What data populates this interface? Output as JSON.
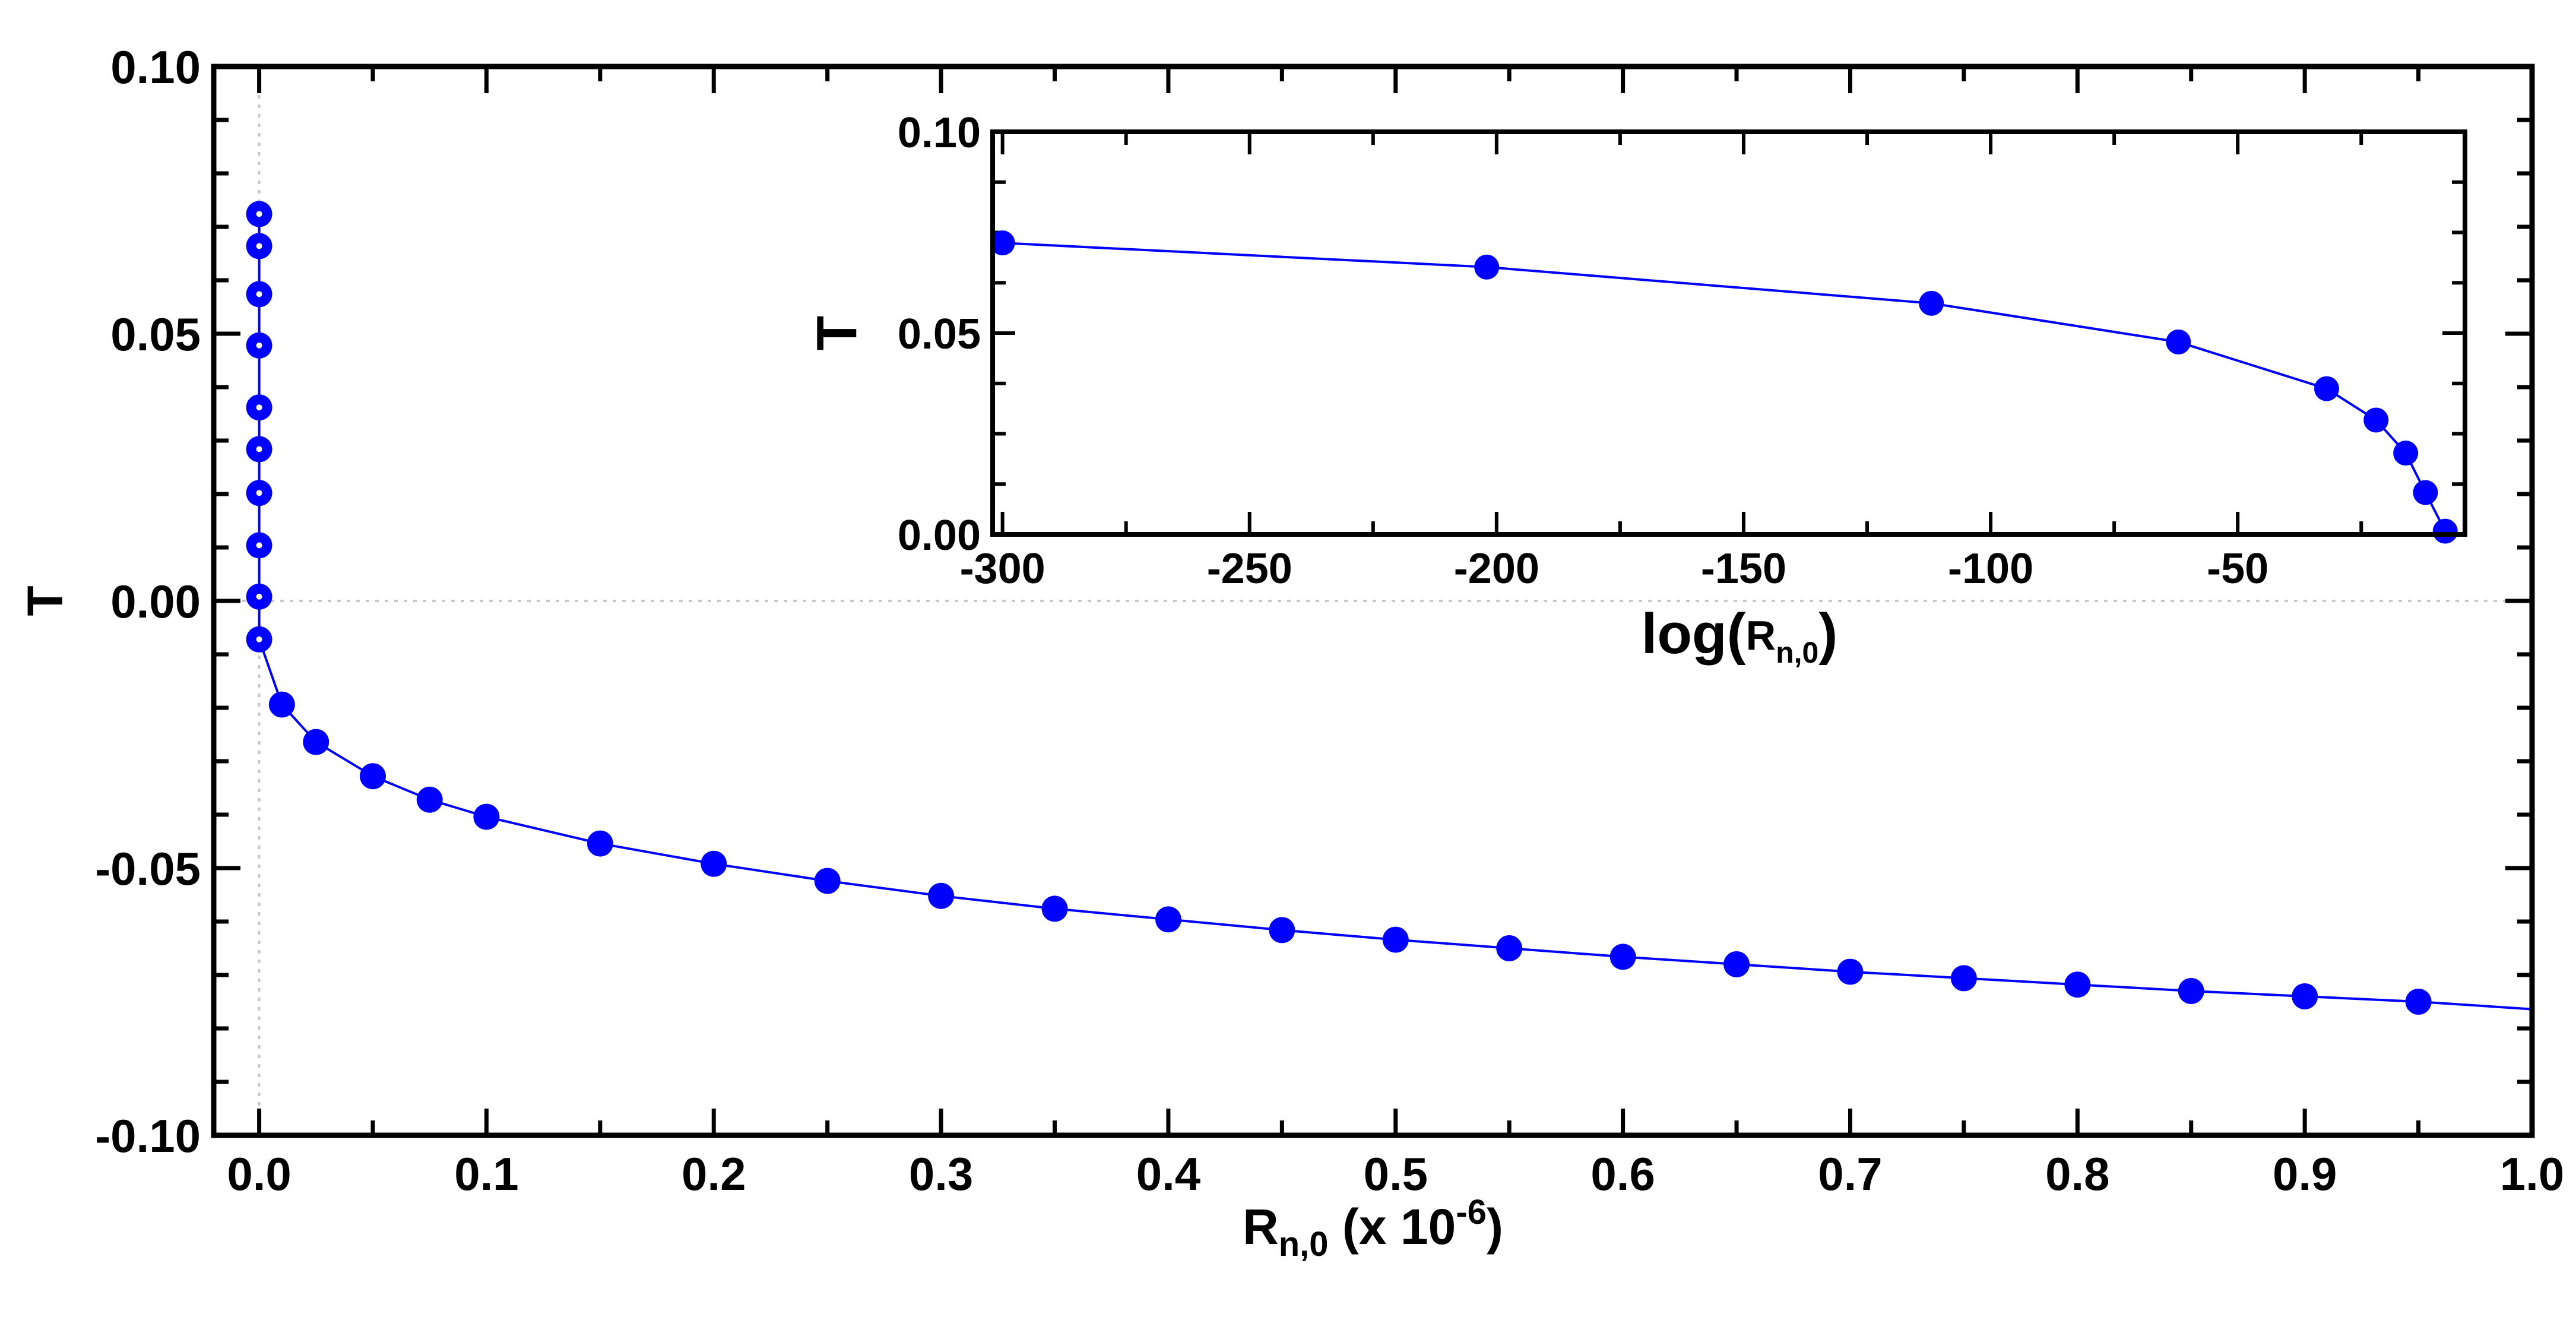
{
  "chart_data": [
    {
      "type": "line",
      "panel": "main",
      "title": "",
      "xlabel": {
        "main": "R",
        "sub": "n,0",
        "rest": " (x 10",
        "sup": "-6",
        "end": ")"
      },
      "ylabel": "T",
      "xlim": [
        -0.02,
        1.0
      ],
      "ylim": [
        -0.1,
        0.1
      ],
      "xticks": [
        0.0,
        0.1,
        0.2,
        0.3,
        0.4,
        0.5,
        0.6,
        0.7,
        0.8,
        0.9,
        1.0
      ],
      "xtick_labels": [
        "0.0",
        "0.1",
        "0.2",
        "0.3",
        "0.4",
        "0.5",
        "0.6",
        "0.7",
        "0.8",
        "0.9",
        "1.0"
      ],
      "yticks": [
        -0.1,
        -0.05,
        0.0,
        0.05,
        0.1
      ],
      "ytick_labels": [
        "-0.10",
        "-0.05",
        "0.00",
        "0.05",
        "0.10"
      ],
      "reference_lines": {
        "x": 0,
        "y": 0
      },
      "color": "#0000ff",
      "series": [
        {
          "name": "T",
          "x": [
            0,
            0,
            0,
            0,
            0,
            0,
            0,
            0,
            0,
            0,
            0.01,
            0.025,
            0.05,
            0.075,
            0.1,
            0.15,
            0.2,
            0.25,
            0.3,
            0.35,
            0.4,
            0.45,
            0.5,
            0.55,
            0.6,
            0.65,
            0.7,
            0.75,
            0.8,
            0.85,
            0.9,
            0.95
          ],
          "y": [
            0.0724,
            0.0664,
            0.0574,
            0.0478,
            0.0362,
            0.0284,
            0.0202,
            0.0104,
            0.0008,
            -0.0072,
            -0.0194,
            -0.0264,
            -0.0328,
            -0.0372,
            -0.0404,
            -0.0454,
            -0.0492,
            -0.0524,
            -0.0552,
            -0.0576,
            -0.0596,
            -0.0616,
            -0.0634,
            -0.065,
            -0.0666,
            -0.068,
            -0.0694,
            -0.0706,
            -0.0718,
            -0.073,
            -0.074,
            -0.075
          ],
          "line_extension": {
            "x": 1.0,
            "y": -0.0764
          }
        }
      ]
    },
    {
      "type": "line",
      "panel": "inset",
      "title": "",
      "xlabel": {
        "main": "log(",
        "sub_base": "R",
        "sub": "n,0",
        "end": ")"
      },
      "ylabel": "T",
      "xlim": [
        -302,
        -4
      ],
      "ylim": [
        0.0,
        0.1
      ],
      "xticks": [
        -300,
        -250,
        -200,
        -150,
        -100,
        -50
      ],
      "xtick_labels": [
        "-300",
        "-250",
        "-200",
        "-150",
        "-100",
        "-50"
      ],
      "yticks": [
        0.0,
        0.05,
        0.1
      ],
      "ytick_labels": [
        "0.00",
        "0.05",
        "0.10"
      ],
      "color": "#0000ff",
      "series": [
        {
          "name": "T",
          "x": [
            -300,
            -202,
            -112,
            -62,
            -32,
            -22,
            -16,
            -12,
            -8
          ],
          "y": [
            0.0724,
            0.0664,
            0.0574,
            0.0478,
            0.0362,
            0.0284,
            0.0202,
            0.0104,
            0.0008
          ]
        }
      ]
    }
  ]
}
